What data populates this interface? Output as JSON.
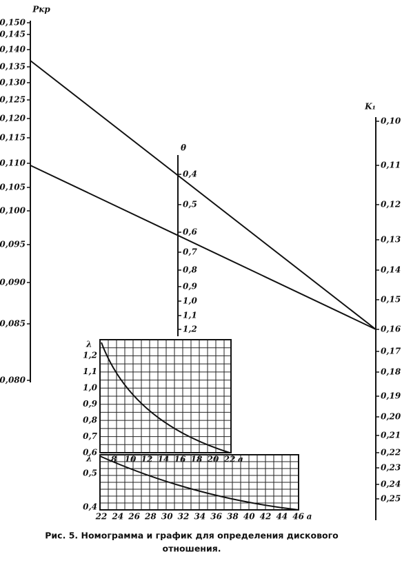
{
  "nomogram": {
    "scales": [
      {
        "label": "Ркр",
        "ticks": [
          "0,150",
          "0,145",
          "0,140",
          "0,135",
          "0,130",
          "0,125",
          "0,120",
          "0,115",
          "0,110",
          "0,105",
          "0,100",
          "0,095",
          "0,090",
          "0,085",
          "0,080"
        ]
      },
      {
        "label": "θ",
        "ticks": [
          "0,4",
          "0,5",
          "0,6",
          "0,7",
          "0,8",
          "0,9",
          "1,0",
          "1,1",
          "1,2"
        ]
      },
      {
        "label": "K₁",
        "ticks": [
          "0,10",
          "0,11",
          "0,12",
          "0,13",
          "0,14",
          "0,15",
          "0,16",
          "0,17",
          "0,18",
          "0,19",
          "0,20",
          "0,21",
          "0,22",
          "0,23",
          "0,24",
          "0,25"
        ]
      }
    ]
  },
  "graphs": [
    {
      "y_label": "λ",
      "x_label": "a",
      "x_ticks": [
        "8",
        "10",
        "12",
        "14",
        "16",
        "18",
        "20",
        "22"
      ],
      "y_ticks": [
        "1,2",
        "1,1",
        "1,0",
        "0,9",
        "0,8",
        "0,7",
        "0,6"
      ]
    },
    {
      "y_label": "λ",
      "x_label": "a",
      "x_ticks": [
        "22",
        "24",
        "26",
        "28",
        "30",
        "32",
        "34",
        "36",
        "38",
        "40",
        "42",
        "44",
        "46"
      ],
      "y_ticks": [
        "0,5",
        "0,4"
      ]
    }
  ],
  "caption": [
    "Рис. 5. Номограмма и график для определения дискового",
    "отношения."
  ]
}
